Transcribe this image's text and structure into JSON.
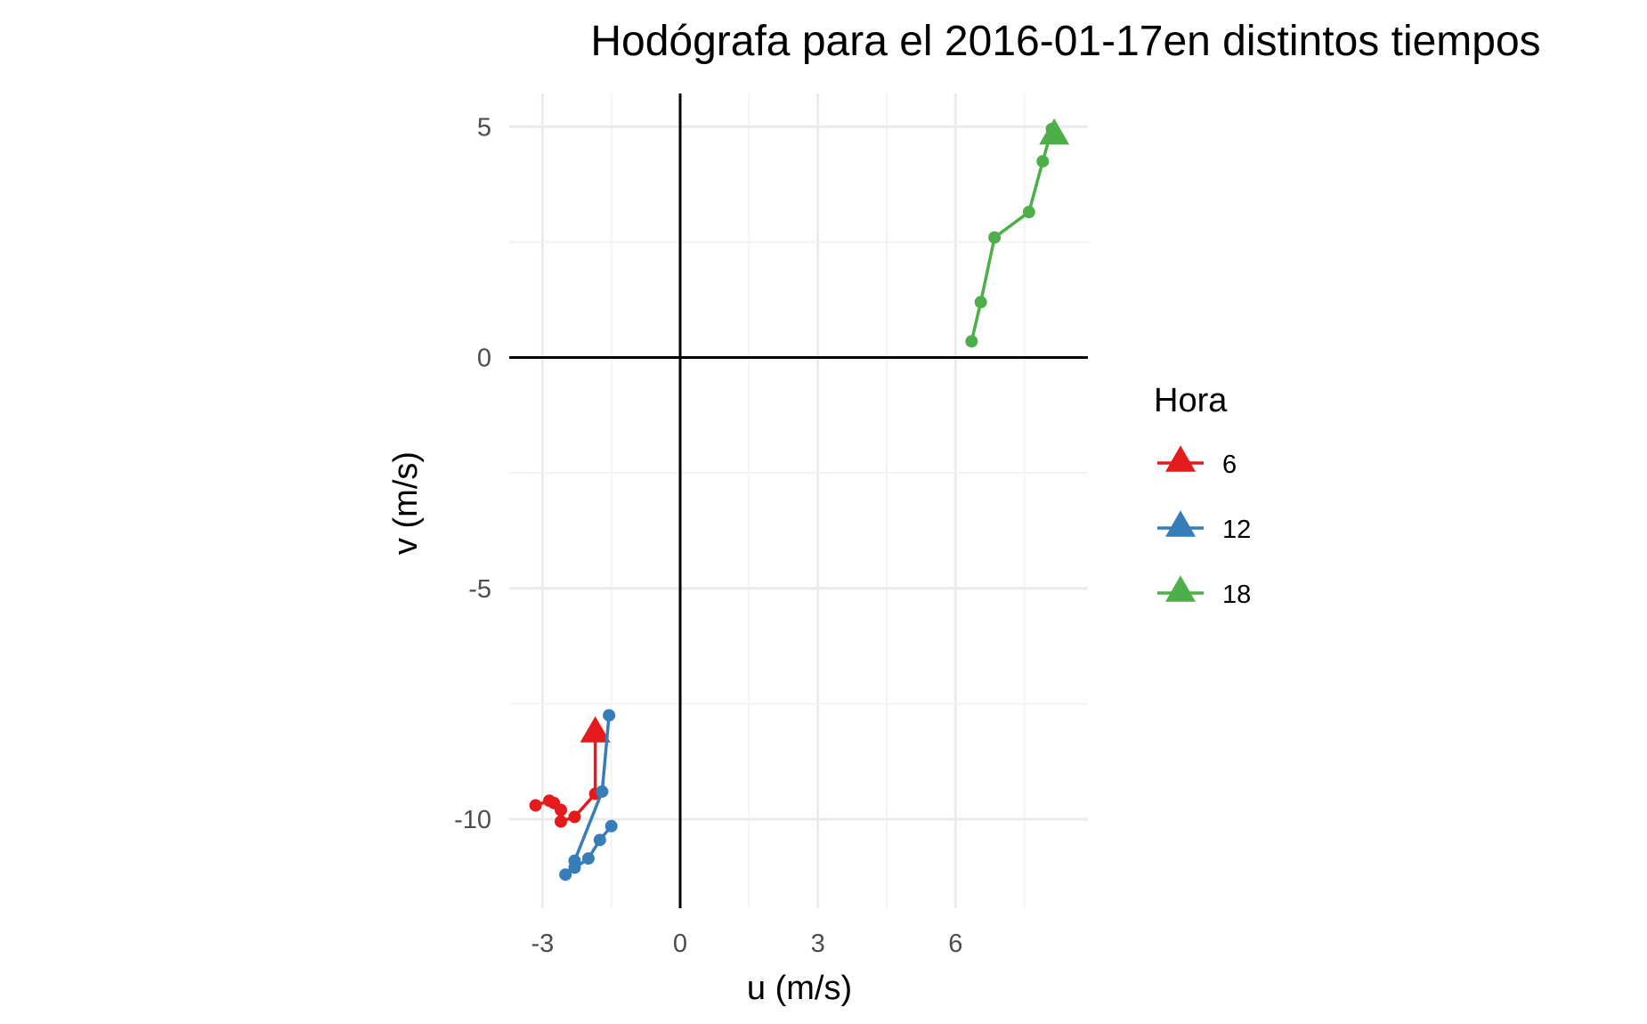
{
  "chart_data": {
    "type": "line",
    "title": "Hodógrafa para el 2016-01-17en distintos tiempos",
    "xlabel": "u (m/s)",
    "ylabel": "v (m/s)",
    "xlim": [
      -3,
      9
    ],
    "ylim": [
      -12.5,
      5.5
    ],
    "x_ticks": [
      -3,
      0,
      3,
      6
    ],
    "y_ticks": [
      5,
      0,
      -5,
      -10
    ],
    "x_tick_labels": [
      "-3",
      "0",
      "3",
      "6"
    ],
    "y_tick_labels": [
      "5",
      "0",
      "-5",
      "-10"
    ],
    "grid": true,
    "reference_lines": {
      "x": 0,
      "y": 0
    },
    "legend": {
      "title": "Hora",
      "position": "right"
    },
    "series": [
      {
        "name": "6",
        "color": "#E41A1C",
        "end_marker": "triangle",
        "points": [
          [
            -1.85,
            -8.15
          ],
          [
            -1.85,
            -9.45
          ],
          [
            -2.3,
            -9.95
          ],
          [
            -2.6,
            -10.05
          ],
          [
            -2.6,
            -9.8
          ],
          [
            -2.75,
            -9.65
          ],
          [
            -2.85,
            -9.6
          ],
          [
            -3.15,
            -9.7
          ]
        ]
      },
      {
        "name": "12",
        "color": "#377EB8",
        "end_marker": "none",
        "points": [
          [
            -1.55,
            -7.75
          ],
          [
            -1.7,
            -9.4
          ],
          [
            -2.3,
            -10.9
          ],
          [
            -2.3,
            -11.05
          ],
          [
            -2.5,
            -11.2
          ],
          [
            -2.0,
            -10.85
          ],
          [
            -1.75,
            -10.45
          ],
          [
            -1.5,
            -10.15
          ]
        ]
      },
      {
        "name": "18",
        "color": "#4DAF4A",
        "end_marker": "triangle",
        "points": [
          [
            8.15,
            4.8
          ],
          [
            8.1,
            4.95
          ],
          [
            7.9,
            4.25
          ],
          [
            7.6,
            3.15
          ],
          [
            6.85,
            2.6
          ],
          [
            6.55,
            1.2
          ],
          [
            6.35,
            0.35
          ]
        ]
      }
    ]
  }
}
